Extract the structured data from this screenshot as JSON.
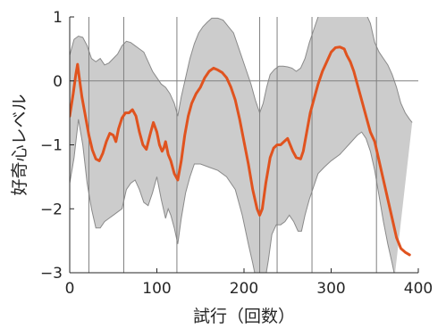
{
  "chart_data": {
    "type": "line",
    "xlabel": "試行（回数）",
    "ylabel": "好奇心レベル",
    "xlim": [
      0,
      400
    ],
    "ylim": [
      -3,
      1
    ],
    "xticks": [
      0,
      100,
      200,
      300,
      400
    ],
    "yticks": [
      -3,
      -2,
      -1,
      0,
      1
    ],
    "xtick_labels": [
      "0",
      "100",
      "200",
      "300",
      "400"
    ],
    "ytick_labels": [
      "−3",
      "−2",
      "−1",
      "0",
      "1"
    ],
    "zero_line": 0,
    "event_lines_x": [
      22,
      62,
      123,
      218,
      238,
      278,
      352
    ],
    "colors": {
      "line": "#e0531f",
      "band_fill": "#cccccc",
      "band_edge": "#8a8a8a",
      "event_line": "#808080",
      "axis": "#262626"
    },
    "series": [
      {
        "values": [
          [
            0,
            -0.55
          ],
          [
            4,
            -0.2
          ],
          [
            7,
            0.1
          ],
          [
            9,
            0.26
          ],
          [
            11,
            0.05
          ],
          [
            14,
            -0.25
          ],
          [
            18,
            -0.55
          ],
          [
            22,
            -0.85
          ],
          [
            26,
            -1.08
          ],
          [
            30,
            -1.22
          ],
          [
            34,
            -1.25
          ],
          [
            38,
            -1.13
          ],
          [
            42,
            -0.95
          ],
          [
            46,
            -0.82
          ],
          [
            50,
            -0.85
          ],
          [
            53,
            -0.95
          ],
          [
            56,
            -0.75
          ],
          [
            60,
            -0.58
          ],
          [
            64,
            -0.5
          ],
          [
            68,
            -0.5
          ],
          [
            72,
            -0.45
          ],
          [
            76,
            -0.55
          ],
          [
            80,
            -0.8
          ],
          [
            84,
            -1.0
          ],
          [
            88,
            -1.07
          ],
          [
            92,
            -0.85
          ],
          [
            96,
            -0.65
          ],
          [
            100,
            -0.8
          ],
          [
            103,
            -1.0
          ],
          [
            106,
            -1.1
          ],
          [
            108,
            -1.05
          ],
          [
            110,
            -0.95
          ],
          [
            113,
            -1.15
          ],
          [
            116,
            -1.25
          ],
          [
            120,
            -1.45
          ],
          [
            124,
            -1.55
          ],
          [
            128,
            -1.25
          ],
          [
            132,
            -0.85
          ],
          [
            136,
            -0.55
          ],
          [
            140,
            -0.35
          ],
          [
            145,
            -0.2
          ],
          [
            150,
            -0.1
          ],
          [
            155,
            0.05
          ],
          [
            160,
            0.15
          ],
          [
            165,
            0.2
          ],
          [
            170,
            0.17
          ],
          [
            175,
            0.13
          ],
          [
            180,
            0.05
          ],
          [
            185,
            -0.1
          ],
          [
            190,
            -0.3
          ],
          [
            195,
            -0.6
          ],
          [
            200,
            -0.95
          ],
          [
            205,
            -1.3
          ],
          [
            210,
            -1.7
          ],
          [
            215,
            -2.0
          ],
          [
            218,
            -2.1
          ],
          [
            221,
            -2.0
          ],
          [
            225,
            -1.6
          ],
          [
            230,
            -1.2
          ],
          [
            234,
            -1.05
          ],
          [
            238,
            -1.0
          ],
          [
            242,
            -1.0
          ],
          [
            246,
            -0.95
          ],
          [
            250,
            -0.9
          ],
          [
            253,
            -1.0
          ],
          [
            256,
            -1.1
          ],
          [
            260,
            -1.2
          ],
          [
            265,
            -1.22
          ],
          [
            268,
            -1.1
          ],
          [
            272,
            -0.8
          ],
          [
            276,
            -0.5
          ],
          [
            280,
            -0.3
          ],
          [
            285,
            -0.05
          ],
          [
            290,
            0.15
          ],
          [
            295,
            0.3
          ],
          [
            300,
            0.45
          ],
          [
            305,
            0.52
          ],
          [
            310,
            0.53
          ],
          [
            315,
            0.5
          ],
          [
            318,
            0.4
          ],
          [
            322,
            0.3
          ],
          [
            326,
            0.15
          ],
          [
            330,
            -0.05
          ],
          [
            335,
            -0.3
          ],
          [
            340,
            -0.55
          ],
          [
            345,
            -0.8
          ],
          [
            350,
            -0.95
          ],
          [
            355,
            -1.25
          ],
          [
            360,
            -1.55
          ],
          [
            365,
            -1.85
          ],
          [
            370,
            -2.15
          ],
          [
            375,
            -2.45
          ],
          [
            380,
            -2.62
          ],
          [
            385,
            -2.68
          ],
          [
            390,
            -2.72
          ]
        ]
      }
    ],
    "band": {
      "upper": [
        [
          0,
          0.4
        ],
        [
          5,
          0.65
        ],
        [
          10,
          0.7
        ],
        [
          15,
          0.68
        ],
        [
          20,
          0.55
        ],
        [
          25,
          0.35
        ],
        [
          30,
          0.3
        ],
        [
          35,
          0.35
        ],
        [
          40,
          0.25
        ],
        [
          45,
          0.28
        ],
        [
          50,
          0.35
        ],
        [
          55,
          0.42
        ],
        [
          60,
          0.55
        ],
        [
          65,
          0.62
        ],
        [
          70,
          0.6
        ],
        [
          75,
          0.55
        ],
        [
          80,
          0.5
        ],
        [
          85,
          0.45
        ],
        [
          90,
          0.3
        ],
        [
          95,
          0.15
        ],
        [
          100,
          0.05
        ],
        [
          105,
          -0.05
        ],
        [
          110,
          -0.1
        ],
        [
          115,
          -0.2
        ],
        [
          120,
          -0.35
        ],
        [
          124,
          -0.55
        ],
        [
          128,
          -0.25
        ],
        [
          133,
          0.05
        ],
        [
          138,
          0.35
        ],
        [
          143,
          0.58
        ],
        [
          148,
          0.75
        ],
        [
          153,
          0.85
        ],
        [
          158,
          0.92
        ],
        [
          163,
          0.98
        ],
        [
          170,
          0.98
        ],
        [
          176,
          0.95
        ],
        [
          182,
          0.85
        ],
        [
          188,
          0.75
        ],
        [
          193,
          0.55
        ],
        [
          198,
          0.35
        ],
        [
          203,
          0.15
        ],
        [
          208,
          -0.05
        ],
        [
          213,
          -0.3
        ],
        [
          218,
          -0.5
        ],
        [
          222,
          -0.35
        ],
        [
          226,
          -0.1
        ],
        [
          230,
          0.1
        ],
        [
          235,
          0.18
        ],
        [
          240,
          0.23
        ],
        [
          245,
          0.23
        ],
        [
          250,
          0.22
        ],
        [
          255,
          0.2
        ],
        [
          260,
          0.15
        ],
        [
          265,
          0.2
        ],
        [
          270,
          0.35
        ],
        [
          275,
          0.6
        ],
        [
          280,
          0.8
        ],
        [
          285,
          1.0
        ],
        [
          290,
          1.05
        ],
        [
          340,
          1.05
        ],
        [
          345,
          0.9
        ],
        [
          350,
          0.6
        ],
        [
          355,
          0.45
        ],
        [
          360,
          0.35
        ],
        [
          365,
          0.25
        ],
        [
          370,
          0.1
        ],
        [
          375,
          -0.1
        ],
        [
          380,
          -0.35
        ],
        [
          385,
          -0.5
        ],
        [
          390,
          -0.6
        ],
        [
          393,
          -0.65
        ]
      ],
      "lower": [
        [
          0,
          -1.6
        ],
        [
          5,
          -1.2
        ],
        [
          10,
          -0.6
        ],
        [
          15,
          -1.0
        ],
        [
          20,
          -1.6
        ],
        [
          25,
          -2.0
        ],
        [
          30,
          -2.3
        ],
        [
          35,
          -2.3
        ],
        [
          40,
          -2.2
        ],
        [
          45,
          -2.15
        ],
        [
          50,
          -2.1
        ],
        [
          55,
          -2.05
        ],
        [
          60,
          -2.0
        ],
        [
          65,
          -1.7
        ],
        [
          70,
          -1.6
        ],
        [
          75,
          -1.55
        ],
        [
          80,
          -1.7
        ],
        [
          85,
          -1.9
        ],
        [
          90,
          -1.95
        ],
        [
          95,
          -1.75
        ],
        [
          100,
          -1.5
        ],
        [
          105,
          -1.85
        ],
        [
          110,
          -2.15
        ],
        [
          113,
          -2.0
        ],
        [
          116,
          -2.1
        ],
        [
          120,
          -2.3
        ],
        [
          124,
          -2.55
        ],
        [
          128,
          -2.15
        ],
        [
          133,
          -1.75
        ],
        [
          138,
          -1.5
        ],
        [
          143,
          -1.3
        ],
        [
          150,
          -1.3
        ],
        [
          160,
          -1.35
        ],
        [
          170,
          -1.4
        ],
        [
          180,
          -1.5
        ],
        [
          190,
          -1.7
        ],
        [
          198,
          -2.1
        ],
        [
          205,
          -2.55
        ],
        [
          210,
          -2.85
        ],
        [
          213,
          -3.05
        ],
        [
          225,
          -3.05
        ],
        [
          228,
          -2.8
        ],
        [
          232,
          -2.4
        ],
        [
          237,
          -2.25
        ],
        [
          242,
          -2.25
        ],
        [
          247,
          -2.2
        ],
        [
          252,
          -2.1
        ],
        [
          257,
          -2.2
        ],
        [
          262,
          -2.35
        ],
        [
          266,
          -2.35
        ],
        [
          270,
          -2.1
        ],
        [
          275,
          -1.85
        ],
        [
          280,
          -1.65
        ],
        [
          285,
          -1.45
        ],
        [
          292,
          -1.35
        ],
        [
          300,
          -1.25
        ],
        [
          310,
          -1.15
        ],
        [
          320,
          -1.0
        ],
        [
          330,
          -0.85
        ],
        [
          335,
          -0.8
        ],
        [
          340,
          -0.9
        ],
        [
          345,
          -1.1
        ],
        [
          350,
          -1.4
        ],
        [
          355,
          -1.8
        ],
        [
          360,
          -2.2
        ],
        [
          365,
          -2.55
        ],
        [
          370,
          -2.85
        ],
        [
          373,
          -3.05
        ]
      ]
    }
  }
}
